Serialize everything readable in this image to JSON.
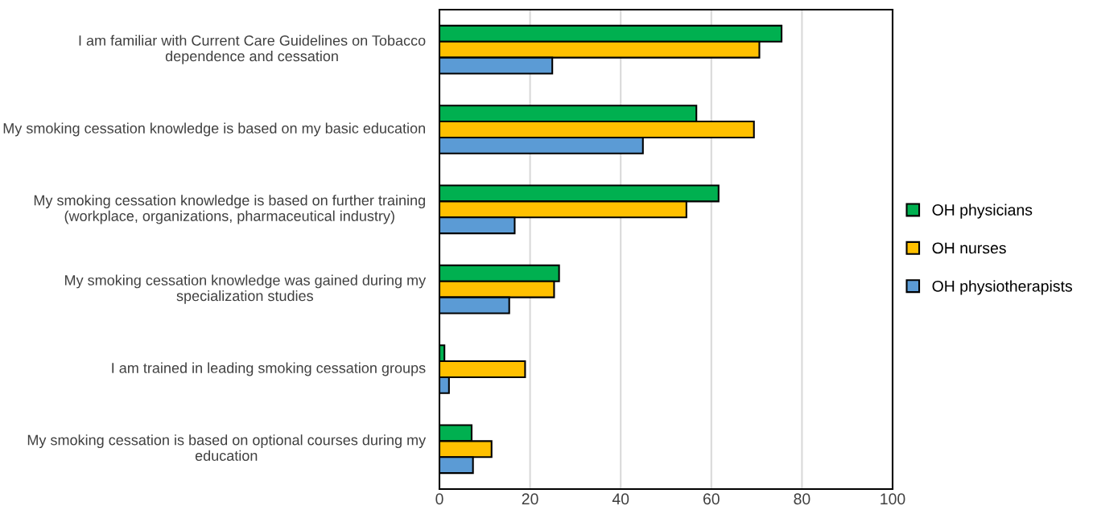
{
  "chart_data": {
    "type": "bar",
    "orientation": "horizontal",
    "categories": [
      "I am familiar with Current Care Guidelines on Tobacco dependence and cessation",
      "My smoking cessation knowledge is based on my basic education",
      "My smoking cessation knowledge is based on further training (workplace, organizations, pharmaceutical industry)",
      "My smoking cessation knowledge was gained during my specialization studies",
      "I am trained in leading smoking cessation groups",
      "My smoking cessation is based on optional courses during my education"
    ],
    "series": [
      {
        "name": "OH physicians",
        "color": "#00b050",
        "values": [
          75.5,
          56.7,
          61.6,
          26.4,
          1.1,
          7.1
        ]
      },
      {
        "name": "OH nurses",
        "color": "#ffc000",
        "values": [
          70.6,
          69.4,
          54.5,
          25.3,
          18.9,
          11.5
        ]
      },
      {
        "name": "OH physiotherapists",
        "color": "#5b9bd5",
        "values": [
          24.9,
          44.9,
          16.6,
          15.4,
          2.1,
          7.4
        ]
      }
    ],
    "xlim": [
      0,
      100
    ],
    "xticks": [
      0,
      20,
      40,
      60,
      80,
      100
    ],
    "grid": "x",
    "legend": "right"
  }
}
